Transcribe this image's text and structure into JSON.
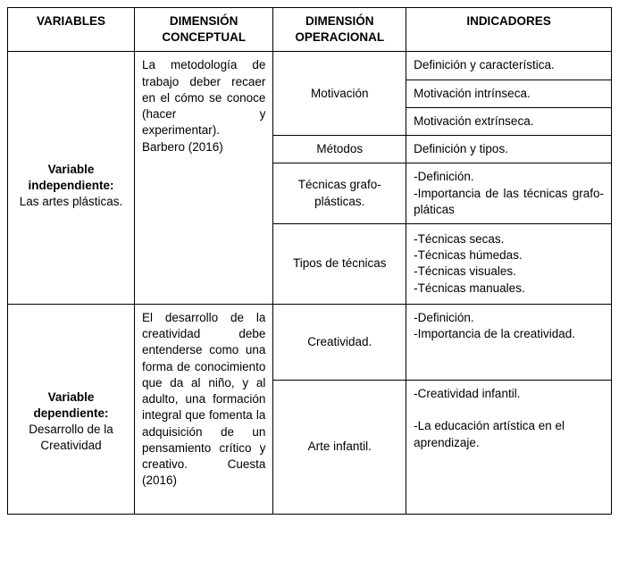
{
  "headers": {
    "variables": "VARIABLES",
    "conceptual": "DIMENSIÓN CONCEPTUAL",
    "operacional": "DIMENSIÓN OPERACIONAL",
    "indicadores": "INDICADORES"
  },
  "row1": {
    "variable_bold": "Variable independiente:",
    "variable_text": "Las artes plásticas.",
    "conceptual": "La metodología de trabajo deber recaer en el cómo se conoce (hacer y experimentar). Barbero (2016)",
    "oper": {
      "motivacion": "Motivación",
      "metodos": "Métodos",
      "tecnicas_grafo": "Técnicas grafo-plásticas.",
      "tipos_tecnicas": "Tipos de técnicas"
    },
    "ind": {
      "motiv_def": "Definición y característica.",
      "motiv_intr": "Motivación intrínseca.",
      "motiv_extr": "Motivación extrínseca.",
      "metodos_def": "Definición y tipos.",
      "tecnicas_def": "-Definición.\n-Importancia de las técnicas grafo-pláticas",
      "tipos": "-Técnicas secas.\n-Técnicas húmedas.\n-Técnicas visuales.\n-Técnicas manuales."
    }
  },
  "row2": {
    "variable_bold": "Variable dependiente:",
    "variable_text": "Desarrollo de la Creatividad",
    "conceptual": "El desarrollo de la creatividad debe entenderse como una forma de conocimiento que da al niño, y al adulto, una formación integral que fomenta la adquisición de un pensamiento crítico y creativo. Cuesta (2016)",
    "oper": {
      "creatividad": "Creatividad.",
      "arte_infantil": "Arte infantil."
    },
    "ind": {
      "creatividad": "-Definición.\n-Importancia de la creatividad.",
      "arte_infantil": "-Creatividad infantil.\n\n-La educación artística en el aprendizaje."
    }
  },
  "styling": {
    "border_color": "#000000",
    "background": "#ffffff",
    "font_family": "Arial",
    "base_fontsize_pt": 10,
    "header_weight": "bold"
  }
}
